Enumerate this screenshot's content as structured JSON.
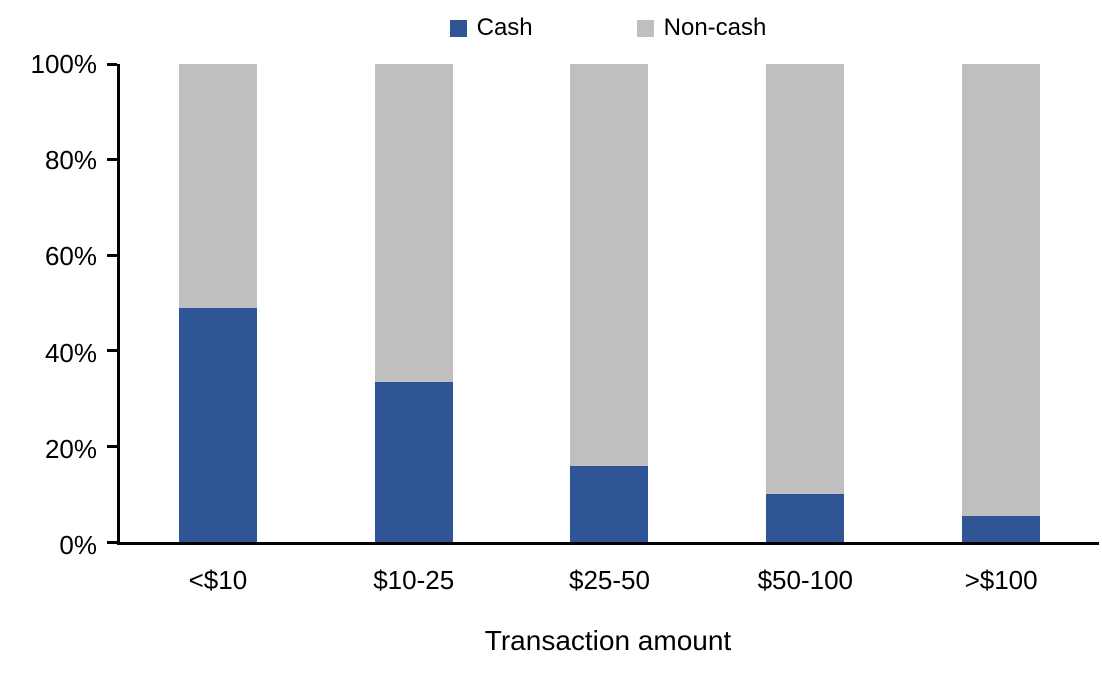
{
  "chart_data": {
    "type": "bar",
    "variant": "stacked-100-percent",
    "title": "",
    "xlabel": "Transaction amount",
    "ylabel": "",
    "categories": [
      "<$10",
      "$10-25",
      "$25-50",
      "$50-100",
      ">$100"
    ],
    "series": [
      {
        "name": "Cash",
        "color": "#2F5597",
        "values": [
          49,
          33.5,
          16,
          10,
          5.5
        ]
      },
      {
        "name": "Non-cash",
        "color": "#BFBFBF",
        "values": [
          51,
          66.5,
          84,
          90,
          94.5
        ]
      }
    ],
    "ylim": [
      0,
      100
    ],
    "yticks": [
      "0%",
      "20%",
      "40%",
      "60%",
      "80%",
      "100%"
    ],
    "legend_position": "top",
    "grid": false,
    "background_color": "#FFFFFF",
    "axis_color": "#000000",
    "text_color": "#000000"
  }
}
